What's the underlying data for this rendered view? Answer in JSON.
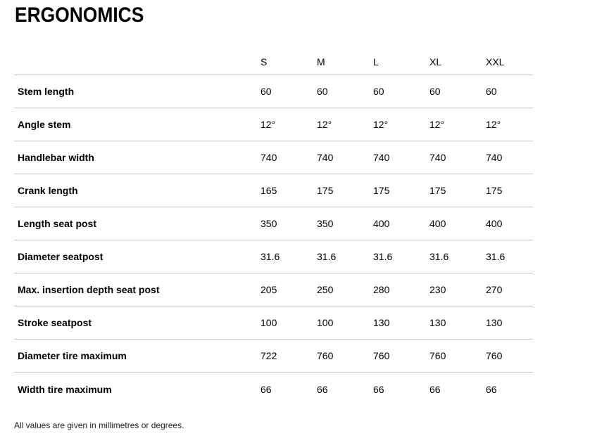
{
  "page": {
    "title": "ERGONOMICS",
    "footnote": "All values are given in millimetres or degrees."
  },
  "table": {
    "columns": [
      "S",
      "M",
      "L",
      "XL",
      "XXL"
    ],
    "rows": [
      {
        "label": "Stem length",
        "values": [
          "60",
          "60",
          "60",
          "60",
          "60"
        ]
      },
      {
        "label": "Angle stem",
        "values": [
          "12°",
          "12°",
          "12°",
          "12°",
          "12°"
        ]
      },
      {
        "label": "Handlebar width",
        "values": [
          "740",
          "740",
          "740",
          "740",
          "740"
        ]
      },
      {
        "label": "Crank length",
        "values": [
          "165",
          "175",
          "175",
          "175",
          "175"
        ]
      },
      {
        "label": "Length seat post",
        "values": [
          "350",
          "350",
          "400",
          "400",
          "400"
        ]
      },
      {
        "label": "Diameter seatpost",
        "values": [
          "31.6",
          "31.6",
          "31.6",
          "31.6",
          "31.6"
        ]
      },
      {
        "label": "Max. insertion depth seat post",
        "values": [
          "205",
          "250",
          "280",
          "230",
          "270"
        ]
      },
      {
        "label": "Stroke seatpost",
        "values": [
          "100",
          "100",
          "130",
          "130",
          "130"
        ]
      },
      {
        "label": "Diameter tire maximum",
        "values": [
          "722",
          "760",
          "760",
          "760",
          "760"
        ]
      },
      {
        "label": "Width tire maximum",
        "values": [
          "66",
          "66",
          "66",
          "66",
          "66"
        ]
      }
    ]
  },
  "colors": {
    "text": "#000000",
    "muted_text": "#222222",
    "divider": "#c8c8c8",
    "background": "#ffffff"
  }
}
